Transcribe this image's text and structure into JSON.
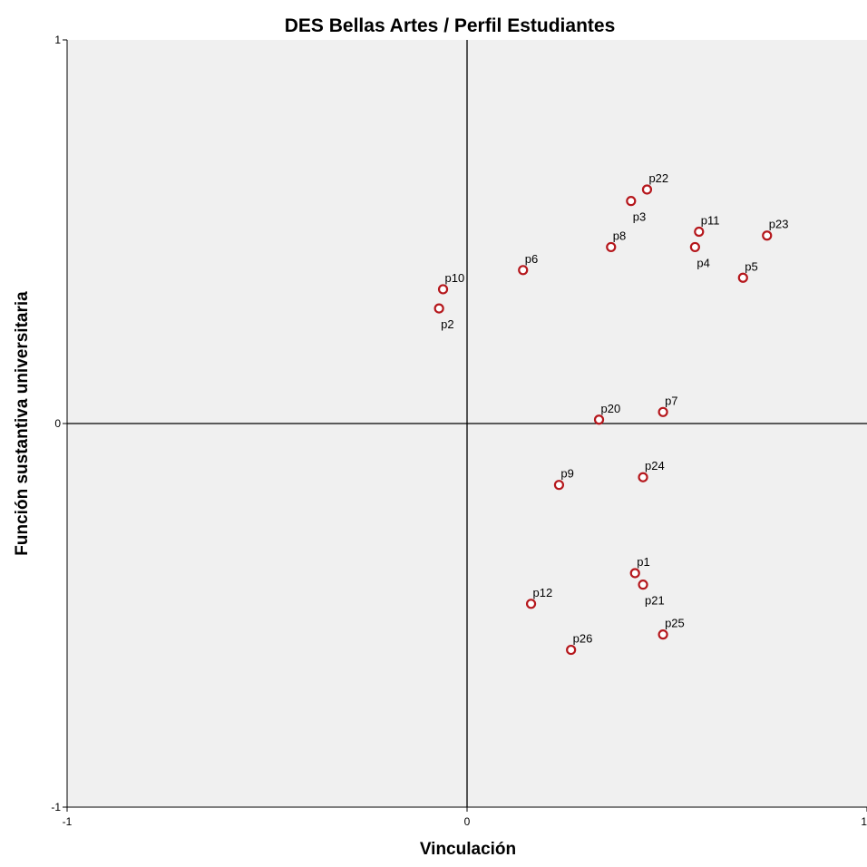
{
  "chart_data": {
    "type": "scatter",
    "title": "DES Bellas Artes / Perfil Estudiantes",
    "xlabel": "Vinculación",
    "ylabel": "Función sustantiva universitaria",
    "xlim": [
      -1,
      1
    ],
    "ylim": [
      -1,
      1
    ],
    "x_ticks": [
      "-1",
      "0",
      "1"
    ],
    "y_ticks": [
      "1",
      "0",
      "-1"
    ],
    "grid": false,
    "reference_lines": {
      "x": 0,
      "y": 0
    },
    "colors": {
      "plot_background": "#f0f0f0",
      "marker": "#b5171c",
      "axis": "#000000"
    },
    "points": [
      {
        "label": "p22",
        "x": 0.45,
        "y": 0.61,
        "label_pos": "above"
      },
      {
        "label": "p3",
        "x": 0.41,
        "y": 0.58,
        "label_pos": "below"
      },
      {
        "label": "p11",
        "x": 0.58,
        "y": 0.5,
        "label_pos": "above"
      },
      {
        "label": "p23",
        "x": 0.75,
        "y": 0.49,
        "label_pos": "above"
      },
      {
        "label": "p8",
        "x": 0.36,
        "y": 0.46,
        "label_pos": "above"
      },
      {
        "label": "p4",
        "x": 0.57,
        "y": 0.46,
        "label_pos": "below"
      },
      {
        "label": "p5",
        "x": 0.69,
        "y": 0.38,
        "label_pos": "above"
      },
      {
        "label": "p6",
        "x": 0.14,
        "y": 0.4,
        "label_pos": "above"
      },
      {
        "label": "p10",
        "x": -0.06,
        "y": 0.35,
        "label_pos": "above"
      },
      {
        "label": "p2",
        "x": -0.07,
        "y": 0.3,
        "label_pos": "below"
      },
      {
        "label": "p20",
        "x": 0.33,
        "y": 0.01,
        "label_pos": "above"
      },
      {
        "label": "p7",
        "x": 0.49,
        "y": 0.03,
        "label_pos": "above"
      },
      {
        "label": "p9",
        "x": 0.23,
        "y": -0.16,
        "label_pos": "above"
      },
      {
        "label": "p24",
        "x": 0.44,
        "y": -0.14,
        "label_pos": "above"
      },
      {
        "label": "p1",
        "x": 0.42,
        "y": -0.39,
        "label_pos": "above"
      },
      {
        "label": "p21",
        "x": 0.44,
        "y": -0.42,
        "label_pos": "below"
      },
      {
        "label": "p12",
        "x": 0.16,
        "y": -0.47,
        "label_pos": "above"
      },
      {
        "label": "p25",
        "x": 0.49,
        "y": -0.55,
        "label_pos": "above"
      },
      {
        "label": "p26",
        "x": 0.26,
        "y": -0.59,
        "label_pos": "above"
      }
    ]
  }
}
